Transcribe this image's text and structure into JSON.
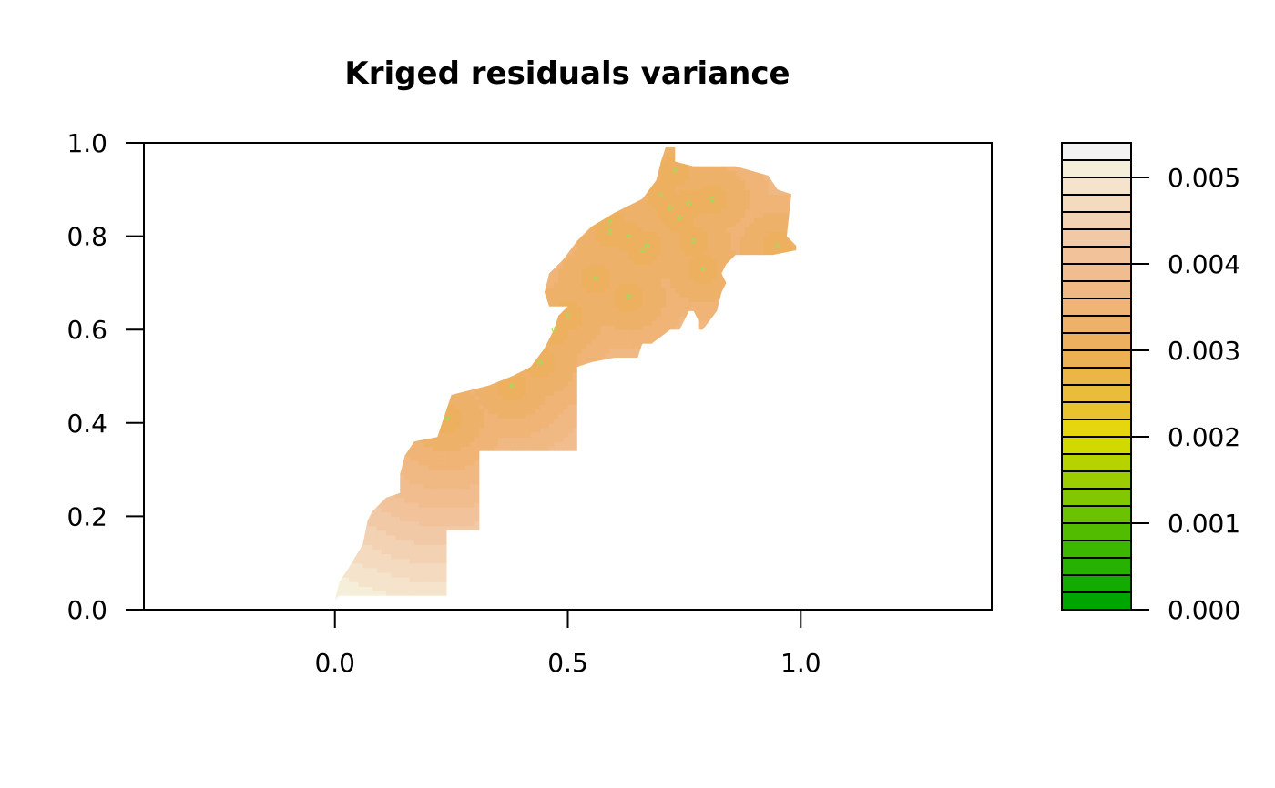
{
  "chart_data": {
    "type": "heatmap",
    "title": "Kriged residuals variance",
    "xlabel": "",
    "ylabel": "",
    "xlim": [
      -0.41,
      1.41
    ],
    "ylim": [
      0.0,
      1.0
    ],
    "x_ticks": [
      "0.0",
      "0.5",
      "1.0"
    ],
    "x_tick_values": [
      0.0,
      0.5,
      1.0
    ],
    "y_ticks": [
      "0.0",
      "0.2",
      "0.4",
      "0.6",
      "0.8",
      "1.0"
    ],
    "y_tick_values": [
      0.0,
      0.2,
      0.4,
      0.6,
      0.8,
      1.0
    ],
    "grid": false,
    "legend_placement": "right",
    "colorbar": {
      "range": [
        0.0,
        0.0054
      ],
      "tick_labels": [
        "0.000",
        "0.001",
        "0.002",
        "0.003",
        "0.004",
        "0.005"
      ],
      "tick_values": [
        0.0,
        0.001,
        0.002,
        0.003,
        0.004,
        0.005
      ],
      "levels": [
        0.0,
        0.0002,
        0.0004,
        0.0006,
        0.0008,
        0.001,
        0.0012,
        0.0014,
        0.0016,
        0.0018,
        0.002,
        0.0022,
        0.0024,
        0.0026,
        0.0028,
        0.003,
        0.0032,
        0.0034,
        0.0036,
        0.0038,
        0.004,
        0.0042,
        0.0044,
        0.0046,
        0.0048,
        0.005,
        0.0052,
        0.0054
      ],
      "colors": [
        "#00A600",
        "#13AB00",
        "#27B100",
        "#3CB700",
        "#52BC00",
        "#6AC200",
        "#82C800",
        "#9CCD00",
        "#B6D300",
        "#D2D900",
        "#E6D60D",
        "#E8C32E",
        "#E9BD3A",
        "#EBB646",
        "#ECB152",
        "#EDB05E",
        "#EEB16A",
        "#EFB476",
        "#F0B882",
        "#F1BD8E",
        "#F2C29A",
        "#F2C9A7",
        "#F3D1B3",
        "#F4DABF",
        "#F5E4CB",
        "#F5EED8",
        "#F2F2F2"
      ]
    },
    "region": {
      "description_outline_xy": [
        [
          0.0,
          0.02
        ],
        [
          0.01,
          0.06
        ],
        [
          0.03,
          0.09
        ],
        [
          0.06,
          0.14
        ],
        [
          0.07,
          0.19
        ],
        [
          0.08,
          0.21
        ],
        [
          0.11,
          0.24
        ],
        [
          0.14,
          0.25
        ],
        [
          0.14,
          0.29
        ],
        [
          0.15,
          0.33
        ],
        [
          0.17,
          0.36
        ],
        [
          0.22,
          0.37
        ],
        [
          0.24,
          0.43
        ],
        [
          0.25,
          0.46
        ],
        [
          0.29,
          0.47
        ],
        [
          0.33,
          0.48
        ],
        [
          0.38,
          0.5
        ],
        [
          0.42,
          0.52
        ],
        [
          0.45,
          0.56
        ],
        [
          0.47,
          0.6
        ],
        [
          0.48,
          0.63
        ],
        [
          0.5,
          0.65
        ],
        [
          0.46,
          0.65
        ],
        [
          0.45,
          0.68
        ],
        [
          0.46,
          0.72
        ],
        [
          0.49,
          0.75
        ],
        [
          0.52,
          0.79
        ],
        [
          0.55,
          0.82
        ],
        [
          0.6,
          0.85
        ],
        [
          0.66,
          0.88
        ],
        [
          0.69,
          0.92
        ],
        [
          0.7,
          0.96
        ],
        [
          0.71,
          0.99
        ],
        [
          0.73,
          0.99
        ],
        [
          0.73,
          0.96
        ],
        [
          0.77,
          0.95
        ],
        [
          0.8,
          0.95
        ],
        [
          0.82,
          0.95
        ],
        [
          0.86,
          0.95
        ],
        [
          0.93,
          0.93
        ],
        [
          0.95,
          0.9
        ],
        [
          0.98,
          0.89
        ],
        [
          0.97,
          0.8
        ],
        [
          0.99,
          0.78
        ],
        [
          0.99,
          0.77
        ],
        [
          0.94,
          0.76
        ],
        [
          0.89,
          0.76
        ],
        [
          0.86,
          0.76
        ],
        [
          0.84,
          0.74
        ],
        [
          0.83,
          0.72
        ],
        [
          0.84,
          0.7
        ],
        [
          0.83,
          0.68
        ],
        [
          0.82,
          0.64
        ],
        [
          0.79,
          0.6
        ],
        [
          0.78,
          0.6
        ],
        [
          0.78,
          0.62
        ],
        [
          0.77,
          0.64
        ],
        [
          0.76,
          0.64
        ],
        [
          0.74,
          0.6
        ],
        [
          0.72,
          0.6
        ],
        [
          0.68,
          0.57
        ],
        [
          0.66,
          0.57
        ],
        [
          0.65,
          0.54
        ],
        [
          0.6,
          0.54
        ],
        [
          0.55,
          0.53
        ],
        [
          0.52,
          0.52
        ],
        [
          0.52,
          0.34
        ],
        [
          0.31,
          0.34
        ],
        [
          0.31,
          0.17
        ],
        [
          0.24,
          0.17
        ],
        [
          0.24,
          0.03
        ],
        [
          0.01,
          0.03
        ]
      ]
    },
    "observations": [
      [
        0.47,
        0.6
      ],
      [
        0.5,
        0.63
      ],
      [
        0.38,
        0.48
      ],
      [
        0.44,
        0.53
      ],
      [
        0.24,
        0.41
      ],
      [
        0.56,
        0.71
      ],
      [
        0.59,
        0.81
      ],
      [
        0.63,
        0.8
      ],
      [
        0.66,
        0.77
      ],
      [
        0.67,
        0.78
      ],
      [
        0.7,
        0.89
      ],
      [
        0.72,
        0.86
      ],
      [
        0.74,
        0.84
      ],
      [
        0.76,
        0.87
      ],
      [
        0.77,
        0.79
      ],
      [
        0.79,
        0.73
      ],
      [
        0.81,
        0.88
      ],
      [
        0.73,
        0.94
      ],
      [
        0.63,
        0.67
      ],
      [
        0.95,
        0.78
      ],
      [
        0.59,
        0.83
      ]
    ]
  }
}
